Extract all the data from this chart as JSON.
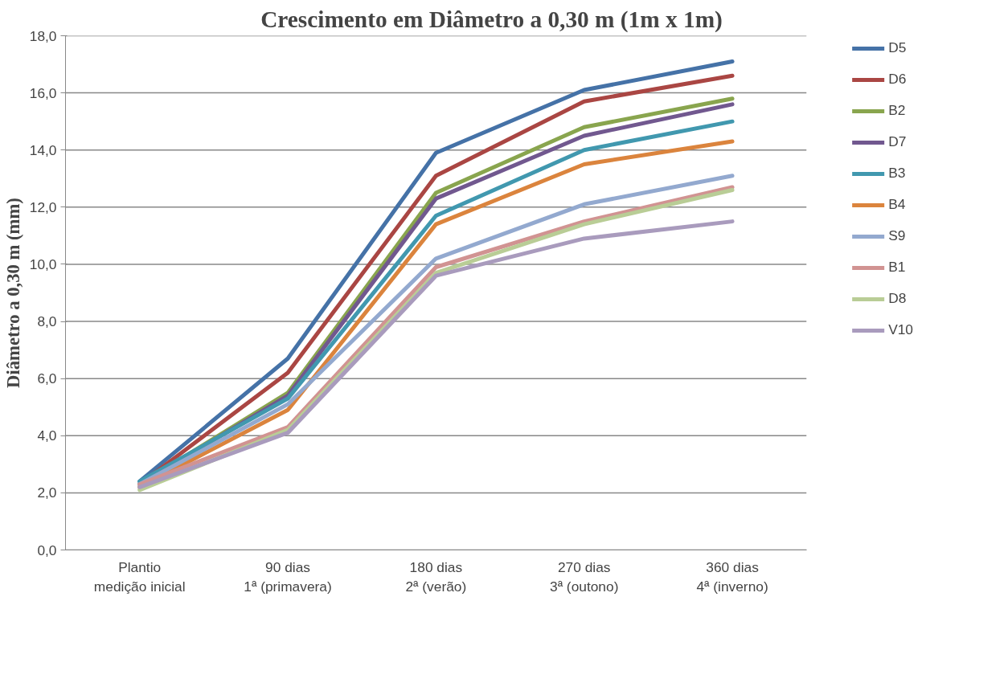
{
  "chart_data": {
    "type": "line",
    "title": "Crescimento em Diâmetro a 0,30 m (1m x 1m)",
    "ylabel": "Diâmetro a 0,30 m (mm)",
    "categories": [
      "Plantio\nmedição inicial",
      "90 dias\n1ª (primavera)",
      "180 dias\n2ª (verão)",
      "270 dias\n3ª (outono)",
      "360 dias\n4ª (inverno)"
    ],
    "ylim": [
      0,
      18
    ],
    "yticks": [
      {
        "value": 0,
        "label": "0,0"
      },
      {
        "value": 2,
        "label": "2,0"
      },
      {
        "value": 4,
        "label": "4,0"
      },
      {
        "value": 6,
        "label": "6,0"
      },
      {
        "value": 8,
        "label": "8,0"
      },
      {
        "value": 10,
        "label": "10,0"
      },
      {
        "value": 12,
        "label": "12,0"
      },
      {
        "value": 14,
        "label": "14,0"
      },
      {
        "value": 16,
        "label": "16,0"
      },
      {
        "value": 18,
        "label": "18,0"
      }
    ],
    "grid": "y",
    "legend": "right",
    "marker": "none",
    "line_style": "solid",
    "series": [
      {
        "name": "D5",
        "color": "#4572a7",
        "values": [
          2.4,
          6.7,
          13.9,
          16.1,
          17.1
        ]
      },
      {
        "name": "D6",
        "color": "#aa4643",
        "values": [
          2.3,
          6.2,
          13.1,
          15.7,
          16.6
        ]
      },
      {
        "name": "B2",
        "color": "#89a54e",
        "values": [
          2.3,
          5.5,
          12.5,
          14.8,
          15.8
        ]
      },
      {
        "name": "D7",
        "color": "#71588f",
        "values": [
          2.3,
          5.4,
          12.3,
          14.5,
          15.6
        ]
      },
      {
        "name": "B3",
        "color": "#4198af",
        "values": [
          2.4,
          5.3,
          11.7,
          14.0,
          15.0
        ]
      },
      {
        "name": "B4",
        "color": "#db843d",
        "values": [
          2.2,
          4.9,
          11.4,
          13.5,
          14.3
        ]
      },
      {
        "name": "S9",
        "color": "#93a9cf",
        "values": [
          2.3,
          5.1,
          10.2,
          12.1,
          13.1
        ]
      },
      {
        "name": "B1",
        "color": "#d19392",
        "values": [
          2.3,
          4.3,
          9.9,
          11.5,
          12.7
        ]
      },
      {
        "name": "D8",
        "color": "#b9cd96",
        "values": [
          2.1,
          4.2,
          9.7,
          11.4,
          12.6
        ]
      },
      {
        "name": "V10",
        "color": "#a99bbd",
        "values": [
          2.2,
          4.1,
          9.6,
          10.9,
          11.5
        ]
      }
    ]
  }
}
